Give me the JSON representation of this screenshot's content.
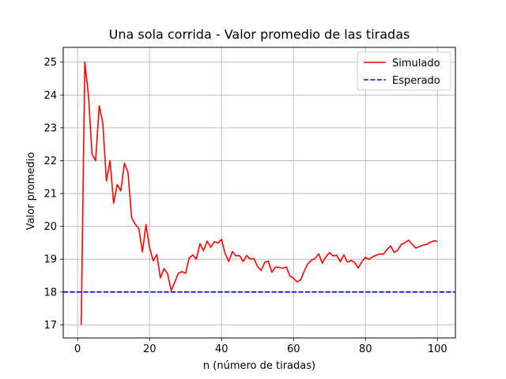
{
  "chart_data": {
    "type": "line",
    "title": "Una sola corrida  - Valor promedio de las tiradas",
    "xlabel": "n (número de tiradas)",
    "ylabel": "Valor promedio",
    "xlim": [
      -4,
      105
    ],
    "ylim": [
      16.6,
      25.45
    ],
    "xticks": [
      0,
      20,
      40,
      60,
      80,
      100
    ],
    "yticks": [
      17,
      18,
      19,
      20,
      21,
      22,
      23,
      24,
      25
    ],
    "grid": true,
    "legend_position": "top-right",
    "series": [
      {
        "name": "Simulado",
        "color": "#ff0000",
        "style": "solid",
        "x": [
          1,
          2,
          3,
          4,
          5,
          6,
          7,
          8,
          9,
          10,
          11,
          12,
          13,
          14,
          15,
          16,
          17,
          18,
          19,
          20,
          21,
          22,
          23,
          24,
          25,
          26,
          27,
          28,
          29,
          30,
          31,
          32,
          33,
          34,
          35,
          36,
          37,
          38,
          39,
          40,
          41,
          42,
          43,
          44,
          45,
          46,
          47,
          48,
          49,
          50,
          51,
          52,
          53,
          54,
          55,
          56,
          57,
          58,
          59,
          60,
          61,
          62,
          63,
          64,
          65,
          66,
          67,
          68,
          69,
          70,
          71,
          72,
          73,
          74,
          75,
          76,
          77,
          78,
          79,
          80,
          81,
          82,
          83,
          84,
          85,
          86,
          87,
          88,
          89,
          90,
          91,
          92,
          93,
          94,
          95,
          96,
          97,
          98,
          99,
          100
        ],
        "y": [
          17.0,
          25.0,
          24.0,
          22.2,
          22.0,
          23.67,
          23.14,
          21.38,
          22.0,
          20.7,
          21.27,
          21.08,
          21.92,
          21.64,
          20.27,
          20.06,
          19.94,
          19.22,
          20.05,
          19.35,
          18.95,
          19.14,
          18.43,
          18.71,
          18.56,
          18.04,
          18.3,
          18.57,
          18.62,
          18.57,
          19.03,
          19.13,
          19.0,
          19.47,
          19.26,
          19.55,
          19.36,
          19.53,
          19.49,
          19.6,
          19.17,
          18.93,
          19.23,
          19.1,
          19.11,
          18.93,
          19.11,
          19.0,
          19.02,
          18.78,
          18.65,
          18.9,
          18.94,
          18.6,
          18.76,
          18.75,
          18.72,
          18.76,
          18.49,
          18.42,
          18.31,
          18.37,
          18.64,
          18.86,
          18.97,
          19.02,
          19.16,
          18.88,
          19.07,
          19.2,
          19.1,
          19.12,
          18.92,
          19.13,
          18.91,
          18.96,
          18.9,
          18.73,
          18.92,
          19.05,
          18.99,
          19.07,
          19.12,
          19.16,
          19.15,
          19.3,
          19.4,
          19.2,
          19.28,
          19.45,
          19.5,
          19.58,
          19.45,
          19.34,
          19.38,
          19.43,
          19.45,
          19.51,
          19.56,
          19.54
        ]
      },
      {
        "name": "Esperado",
        "color": "#0000ff",
        "style": "dashed",
        "x": [
          -4,
          105
        ],
        "y": [
          18,
          18
        ]
      }
    ]
  }
}
